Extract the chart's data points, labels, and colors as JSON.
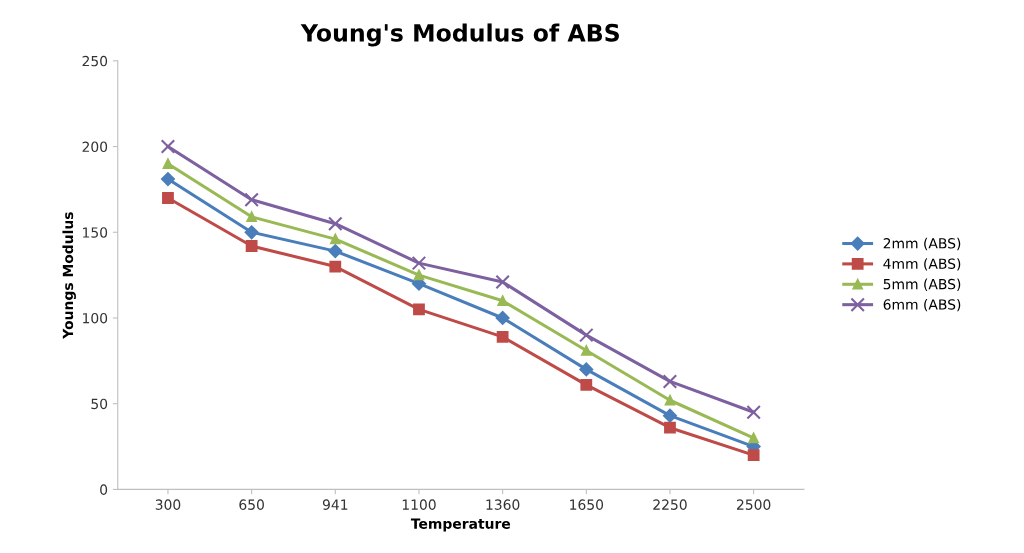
{
  "chart_data": {
    "type": "line",
    "title": "Young's Modulus of ABS",
    "xlabel": "Temperature",
    "ylabel": "Youngs Modulus",
    "categories": [
      "300",
      "650",
      "941",
      "1100",
      "1360",
      "1650",
      "2250",
      "2500"
    ],
    "series": [
      {
        "name": "2mm (ABS)",
        "color": "#4a7ebb",
        "marker": "diamond",
        "values": [
          181,
          150,
          139,
          120,
          100,
          70,
          43,
          25
        ]
      },
      {
        "name": "4mm (ABS)",
        "color": "#be4b48",
        "marker": "square",
        "values": [
          170,
          142,
          130,
          105,
          89,
          61,
          36,
          20
        ]
      },
      {
        "name": "5mm (ABS)",
        "color": "#98b954",
        "marker": "triangle",
        "values": [
          190,
          159,
          146,
          125,
          110,
          81,
          52,
          30
        ]
      },
      {
        "name": "6mm (ABS)",
        "color": "#7d60a0",
        "marker": "cross",
        "values": [
          200,
          169,
          155,
          132,
          121,
          90,
          63,
          45
        ]
      }
    ],
    "ylim": [
      0,
      250
    ],
    "yticks": [
      0,
      50,
      100,
      150,
      200,
      250
    ],
    "grid": false,
    "legend": "right"
  }
}
